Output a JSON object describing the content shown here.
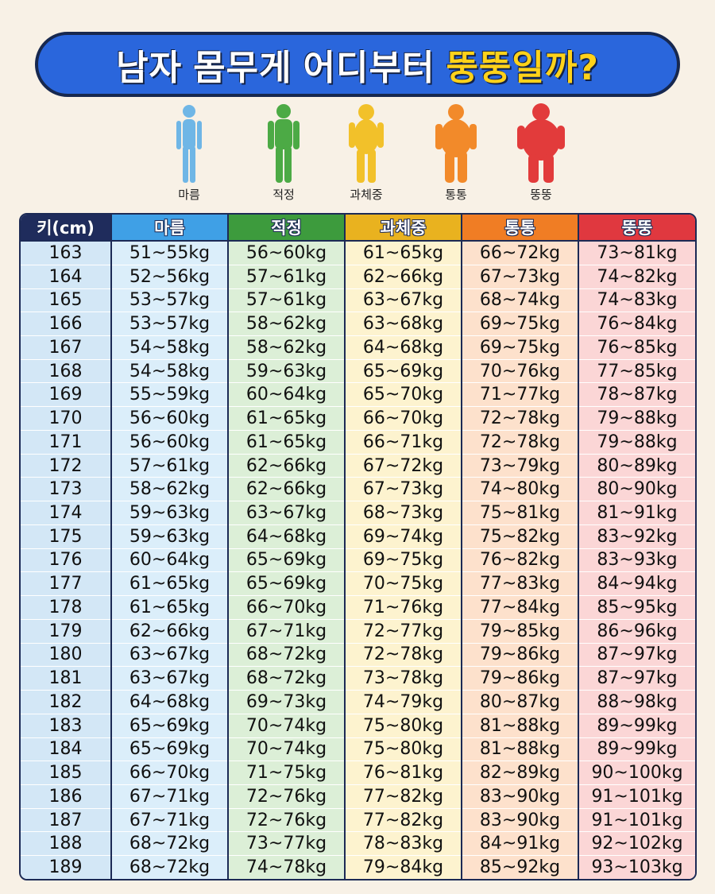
{
  "title": {
    "part1": "남자",
    "part2": "몸무게",
    "part3": "어디부터",
    "part4": "뚱뚱일까?"
  },
  "figures": [
    {
      "label": "마름",
      "icon": "thin-body-icon",
      "color": "#6fb6e6"
    },
    {
      "label": "적정",
      "icon": "normal-body-icon",
      "color": "#4caa45"
    },
    {
      "label": "과체중",
      "icon": "overweight-body-icon",
      "color": "#f2c12a"
    },
    {
      "label": "통통",
      "icon": "chubby-body-icon",
      "color": "#f28a2a"
    },
    {
      "label": "뚱뚱",
      "icon": "fat-body-icon",
      "color": "#e23b3b"
    }
  ],
  "table": {
    "headers": [
      "키(cm)",
      "마름",
      "적정",
      "과체중",
      "통통",
      "뚱뚱"
    ],
    "header_colors": [
      "#1f2c5c",
      "#3fa0e6",
      "#3d9b3d",
      "#e9b21f",
      "#f07d24",
      "#e0383f"
    ],
    "column_colors": [
      "#d3e7f6",
      "#dbeefa",
      "#dcefd7",
      "#fdf3cf",
      "#fde1cc",
      "#fbd6d6"
    ],
    "rows": [
      [
        "163",
        "51~55kg",
        "56~60kg",
        "61~65kg",
        "66~72kg",
        "73~81kg"
      ],
      [
        "164",
        "52~56kg",
        "57~61kg",
        "62~66kg",
        "67~73kg",
        "74~82kg"
      ],
      [
        "165",
        "53~57kg",
        "57~61kg",
        "63~67kg",
        "68~74kg",
        "74~83kg"
      ],
      [
        "166",
        "53~57kg",
        "58~62kg",
        "63~68kg",
        "69~75kg",
        "76~84kg"
      ],
      [
        "167",
        "54~58kg",
        "58~62kg",
        "64~68kg",
        "69~75kg",
        "76~85kg"
      ],
      [
        "168",
        "54~58kg",
        "59~63kg",
        "65~69kg",
        "70~76kg",
        "77~85kg"
      ],
      [
        "169",
        "55~59kg",
        "60~64kg",
        "65~70kg",
        "71~77kg",
        "78~87kg"
      ],
      [
        "170",
        "56~60kg",
        "61~65kg",
        "66~70kg",
        "72~78kg",
        "79~88kg"
      ],
      [
        "171",
        "56~60kg",
        "61~65kg",
        "66~71kg",
        "72~78kg",
        "79~88kg"
      ],
      [
        "172",
        "57~61kg",
        "62~66kg",
        "67~72kg",
        "73~79kg",
        "80~89kg"
      ],
      [
        "173",
        "58~62kg",
        "62~66kg",
        "67~73kg",
        "74~80kg",
        "80~90kg"
      ],
      [
        "174",
        "59~63kg",
        "63~67kg",
        "68~73kg",
        "75~81kg",
        "81~91kg"
      ],
      [
        "175",
        "59~63kg",
        "64~68kg",
        "69~74kg",
        "75~82kg",
        "83~92kg"
      ],
      [
        "176",
        "60~64kg",
        "65~69kg",
        "69~75kg",
        "76~82kg",
        "83~93kg"
      ],
      [
        "177",
        "61~65kg",
        "65~69kg",
        "70~75kg",
        "77~83kg",
        "84~94kg"
      ],
      [
        "178",
        "61~65kg",
        "66~70kg",
        "71~76kg",
        "77~84kg",
        "85~95kg"
      ],
      [
        "179",
        "62~66kg",
        "67~71kg",
        "72~77kg",
        "79~85kg",
        "86~96kg"
      ],
      [
        "180",
        "63~67kg",
        "68~72kg",
        "72~78kg",
        "79~86kg",
        "87~97kg"
      ],
      [
        "181",
        "63~67kg",
        "68~72kg",
        "73~78kg",
        "79~86kg",
        "87~97kg"
      ],
      [
        "182",
        "64~68kg",
        "69~73kg",
        "74~79kg",
        "80~87kg",
        "88~98kg"
      ],
      [
        "183",
        "65~69kg",
        "70~74kg",
        "75~80kg",
        "81~88kg",
        "89~99kg"
      ],
      [
        "184",
        "65~69kg",
        "70~74kg",
        "75~80kg",
        "81~88kg",
        "89~99kg"
      ],
      [
        "185",
        "66~70kg",
        "71~75kg",
        "76~81kg",
        "82~89kg",
        "90~100kg"
      ],
      [
        "186",
        "67~71kg",
        "72~76kg",
        "77~82kg",
        "83~90kg",
        "91~101kg"
      ],
      [
        "187",
        "67~71kg",
        "72~76kg",
        "77~82kg",
        "83~90kg",
        "91~101kg"
      ],
      [
        "188",
        "68~72kg",
        "73~77kg",
        "78~83kg",
        "84~91kg",
        "92~102kg"
      ],
      [
        "189",
        "68~72kg",
        "74~78kg",
        "79~84kg",
        "85~92kg",
        "93~103kg"
      ]
    ]
  }
}
